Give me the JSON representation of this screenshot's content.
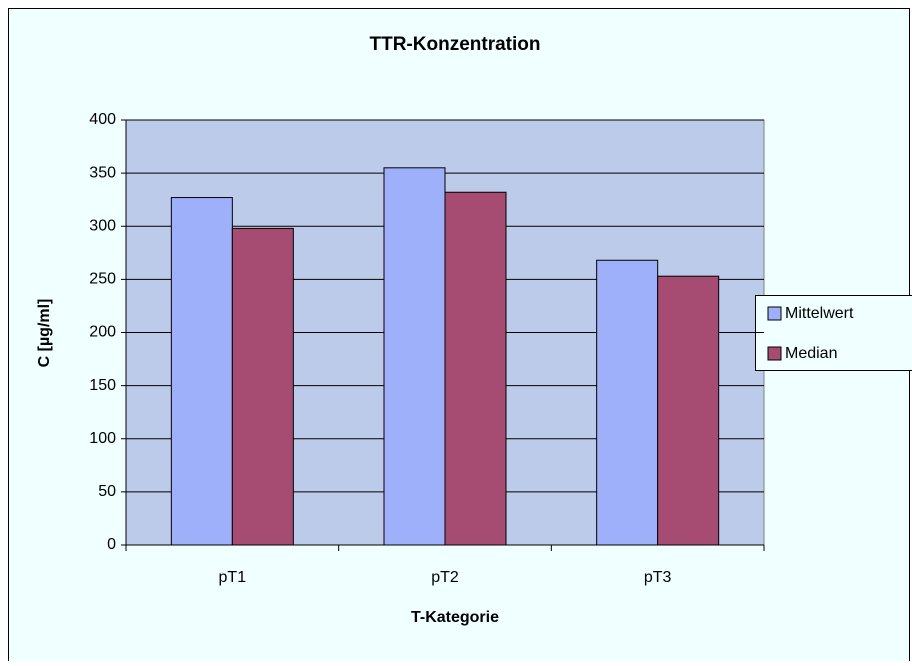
{
  "chart_data": {
    "type": "bar",
    "title": "TTR-Konzentration",
    "x_label": "T-Kategorie",
    "y_label": "C [µg/ml]",
    "categories": [
      "pT1",
      "pT2",
      "pT3"
    ],
    "series": [
      {
        "name": "Mittelwert",
        "color": "#9fb0fb",
        "values": [
          327,
          355,
          268
        ]
      },
      {
        "name": "Median",
        "color": "#a64c72",
        "values": [
          298,
          332,
          253
        ]
      }
    ],
    "ylim": [
      0,
      400
    ],
    "yticks": [
      0,
      50,
      100,
      150,
      200,
      250,
      300,
      350,
      400
    ],
    "grid": true,
    "legend": "right"
  }
}
